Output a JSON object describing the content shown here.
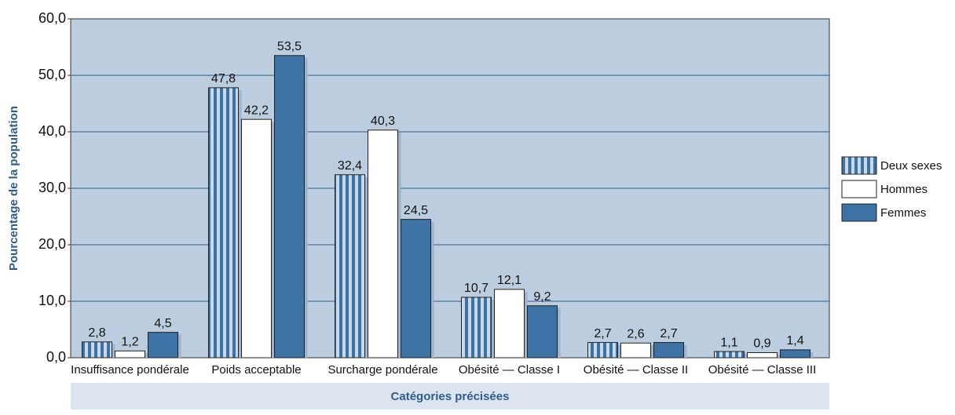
{
  "chart_data": {
    "type": "bar",
    "categories": [
      "Insuffisance pondérale",
      "Poids acceptable",
      "Surcharge pondérale",
      "Obésité — Classe I",
      "Obésité — Classe II",
      "Obésité — Classe III"
    ],
    "series": [
      {
        "name": "Deux sexes",
        "color": "#3d72a4",
        "pattern": "vertical-stripes",
        "values": [
          2.8,
          47.8,
          32.4,
          10.7,
          2.7,
          1.1
        ],
        "value_labels": [
          "2,8",
          "47,8",
          "32,4",
          "10,7",
          "2,7",
          "1,1"
        ]
      },
      {
        "name": "Hommes",
        "color": "#ffffff",
        "values": [
          1.2,
          42.2,
          40.3,
          12.1,
          2.6,
          0.9
        ],
        "value_labels": [
          "1,2",
          "42,2",
          "40,3",
          "12,1",
          "2,6",
          "0,9"
        ]
      },
      {
        "name": "Femmes",
        "color": "#3d72a4",
        "values": [
          4.5,
          53.5,
          24.5,
          9.2,
          2.7,
          1.4
        ],
        "value_labels": [
          "4,5",
          "53,5",
          "24,5",
          "9,2",
          "2,7",
          "1,4"
        ]
      }
    ],
    "ylim": [
      0,
      60
    ],
    "yticks": [
      {
        "value": 0,
        "label": "0,0"
      },
      {
        "value": 10,
        "label": "10,0"
      },
      {
        "value": 20,
        "label": "20,0"
      },
      {
        "value": 30,
        "label": "30,0"
      },
      {
        "value": 40,
        "label": "40,0"
      },
      {
        "value": 50,
        "label": "50,0"
      },
      {
        "value": 60,
        "label": "60,0"
      }
    ],
    "y_label": "Pourcentage de la population",
    "x_label": "Catégories précisées",
    "grid": true,
    "legend": "right"
  }
}
